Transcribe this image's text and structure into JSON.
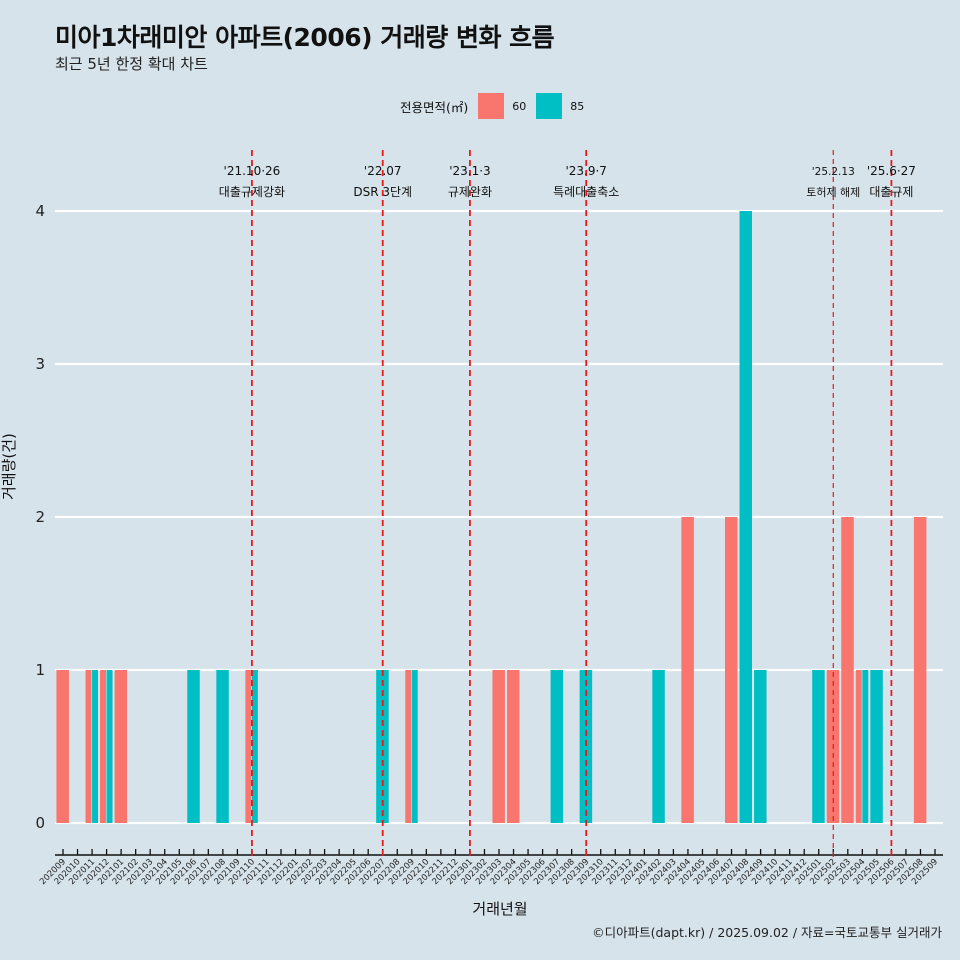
{
  "header": {
    "title": "미아1차래미안 아파트(2006) 거래량 변화 흐름",
    "subtitle": "최근 5년 한정 확대 차트"
  },
  "legend": {
    "title": "전용면적(㎡)",
    "items": [
      {
        "label": "60",
        "color": "#f8766d"
      },
      {
        "label": "85",
        "color": "#00bfc4"
      }
    ]
  },
  "caption": "©디아파트(dapt.kr) / 2025.09.02 / 자료=국토교통부 실거래가",
  "chart_data": {
    "type": "bar",
    "title": "미아1차래미안 아파트(2006) 거래량 변화 흐름",
    "subtitle": "최근 5년 한정 확대 차트",
    "xlabel": "거래년월",
    "ylabel": "거래량(건)",
    "ylim": [
      0,
      4
    ],
    "yticks": [
      0,
      1,
      2,
      3,
      4
    ],
    "grid": "horizontal",
    "legend_position": "top",
    "position": "dodge",
    "categories": [
      "202009",
      "202010",
      "202011",
      "202012",
      "202101",
      "202102",
      "202103",
      "202104",
      "202105",
      "202106",
      "202107",
      "202108",
      "202109",
      "202110",
      "202111",
      "202112",
      "202201",
      "202202",
      "202203",
      "202204",
      "202205",
      "202206",
      "202207",
      "202208",
      "202209",
      "202210",
      "202211",
      "202212",
      "202301",
      "202302",
      "202303",
      "202304",
      "202305",
      "202306",
      "202307",
      "202308",
      "202309",
      "202310",
      "202311",
      "202312",
      "202401",
      "202402",
      "202403",
      "202404",
      "202405",
      "202406",
      "202407",
      "202408",
      "202409",
      "202410",
      "202411",
      "202412",
      "202501",
      "202502",
      "202503",
      "202504",
      "202505",
      "202506",
      "202507",
      "202508",
      "202509"
    ],
    "series": [
      {
        "name": "60",
        "color": "#f8766d",
        "points": [
          {
            "x": "202009",
            "y": 1
          },
          {
            "x": "202011",
            "y": 1
          },
          {
            "x": "202012",
            "y": 1
          },
          {
            "x": "202101",
            "y": 1
          },
          {
            "x": "202110",
            "y": 1
          },
          {
            "x": "202209",
            "y": 1
          },
          {
            "x": "202303",
            "y": 1
          },
          {
            "x": "202304",
            "y": 1
          },
          {
            "x": "202404",
            "y": 2
          },
          {
            "x": "202407",
            "y": 2
          },
          {
            "x": "202502",
            "y": 1
          },
          {
            "x": "202503",
            "y": 2
          },
          {
            "x": "202504",
            "y": 1
          },
          {
            "x": "202508",
            "y": 2
          }
        ]
      },
      {
        "name": "85",
        "color": "#00bfc4",
        "points": [
          {
            "x": "202011",
            "y": 1
          },
          {
            "x": "202012",
            "y": 1
          },
          {
            "x": "202106",
            "y": 1
          },
          {
            "x": "202108",
            "y": 1
          },
          {
            "x": "202110",
            "y": 1
          },
          {
            "x": "202207",
            "y": 1
          },
          {
            "x": "202209",
            "y": 1
          },
          {
            "x": "202307",
            "y": 1
          },
          {
            "x": "202309",
            "y": 1
          },
          {
            "x": "202402",
            "y": 1
          },
          {
            "x": "202408",
            "y": 4
          },
          {
            "x": "202409",
            "y": 1
          },
          {
            "x": "202501",
            "y": 1
          },
          {
            "x": "202504",
            "y": 1
          },
          {
            "x": "202505",
            "y": 1
          }
        ]
      }
    ],
    "annotations": [
      {
        "x": "202110",
        "date": "'21.10·26",
        "label": "대출규제강화",
        "style": "bold-dash"
      },
      {
        "x": "202207",
        "date": "'22.07",
        "label": "DSR 3단계",
        "style": "bold-dash"
      },
      {
        "x": "202301",
        "date": "'23.1·3",
        "label": "규제완화",
        "style": "bold-dash"
      },
      {
        "x": "202309",
        "date": "'23.9·7",
        "label": "특례대출축소",
        "style": "bold-dash"
      },
      {
        "x": "202502",
        "date": "'25.2.13",
        "label": "토허제 해제",
        "style": "thin-dash"
      },
      {
        "x": "202506",
        "date": "'25.6·27",
        "label": "대출규제",
        "style": "bold-dash"
      }
    ],
    "annotation_color": "#e41a1c"
  }
}
